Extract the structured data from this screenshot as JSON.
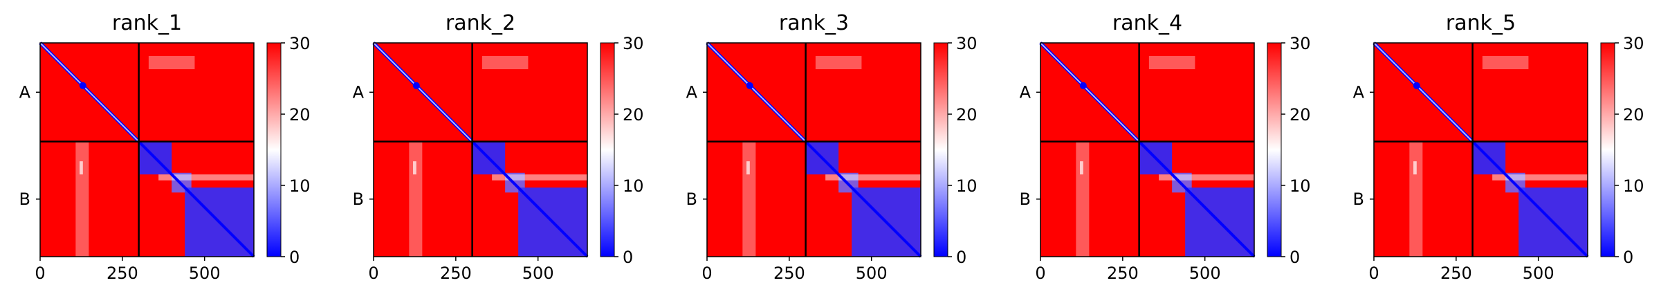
{
  "chart_data": {
    "type": "heatmap",
    "description_scale": {
      "colormap": [
        "#0000ff",
        "#ffffff",
        "#ff0000"
      ],
      "vmin": 0,
      "vmax": 30
    },
    "x_ticks": [
      "0",
      "250",
      "500"
    ],
    "x_tick_values": [
      0,
      250,
      500
    ],
    "x_range": [
      0,
      650
    ],
    "y_labels": [
      "A",
      "B"
    ],
    "chain_boundary": 300,
    "colorbar_ticks": [
      "0",
      "10",
      "20",
      "30"
    ],
    "colorbar_tick_values": [
      0,
      10,
      20,
      30
    ],
    "panels": [
      {
        "title": "rank_1"
      },
      {
        "title": "rank_2"
      },
      {
        "title": "rank_3"
      },
      {
        "title": "rank_4"
      },
      {
        "title": "rank_5"
      }
    ]
  }
}
